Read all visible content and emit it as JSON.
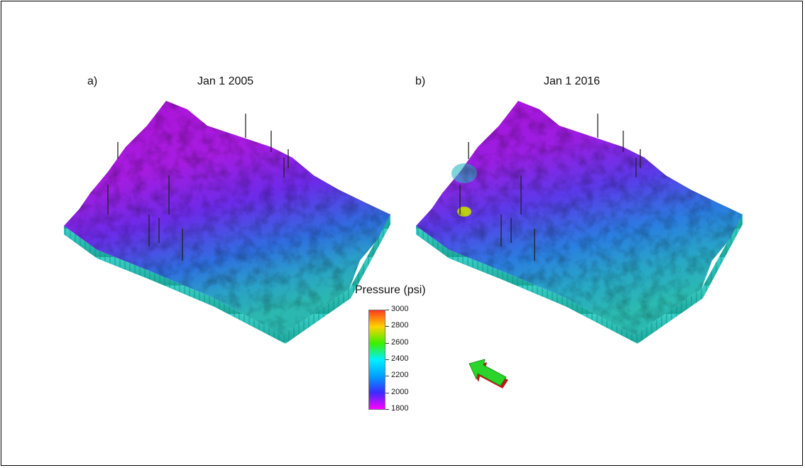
{
  "panels": [
    {
      "letter": "a)",
      "date": "Jan 1 2005"
    },
    {
      "letter": "b)",
      "date": "Jan 1 2016"
    }
  ],
  "legend": {
    "title": "Pressure (psi)",
    "ticks": [
      "3000",
      "2800",
      "2600",
      "2400",
      "2200",
      "2000",
      "1800"
    ],
    "colors": [
      "#ff3b1f",
      "#ffd400",
      "#3cf000",
      "#00f0ff",
      "#00a0ff",
      "#3a2bff",
      "#ff00ff"
    ]
  },
  "icons": {
    "direction_arrow": "north-arrow-icon"
  }
}
